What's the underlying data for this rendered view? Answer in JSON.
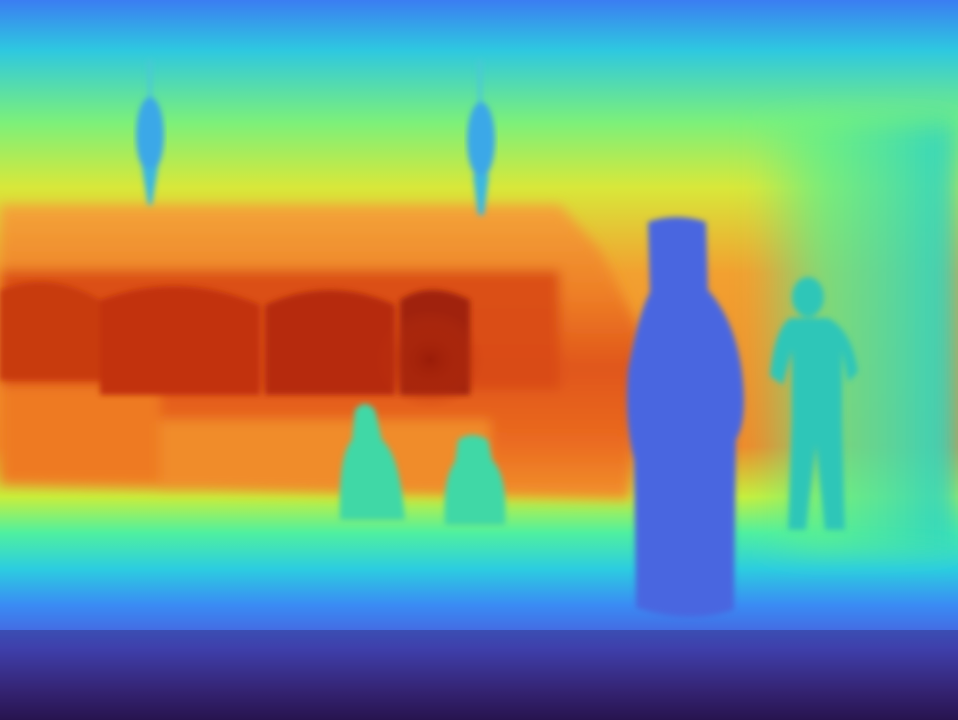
{
  "image": {
    "kind": "depth-map",
    "colormap": "turbo",
    "description_visible_text": "",
    "palette": {
      "far_dark": "#2a1b5c",
      "far_blue": "#3a6cf0",
      "cyan": "#2bd6c4",
      "green": "#5ff08a",
      "yellow": "#c9f23a",
      "orange": "#f08a2a",
      "red_orange": "#e2541a",
      "deep_red": "#b0280c",
      "near_blue": "#4a6ae0",
      "person_teal": "#2fc6b8"
    },
    "subjects": [
      {
        "name": "ceiling-lamp-left",
        "color": "#3aa8e8"
      },
      {
        "name": "ceiling-lamp-right",
        "color": "#3aa8e8"
      },
      {
        "name": "robed-figure-foreground",
        "color": "#4a66e0"
      },
      {
        "name": "standing-person-background",
        "color": "#2fc6b8"
      },
      {
        "name": "seated-figure-left",
        "color": "#3fd8a6"
      },
      {
        "name": "seated-figure-right",
        "color": "#3fd8a6"
      }
    ]
  }
}
